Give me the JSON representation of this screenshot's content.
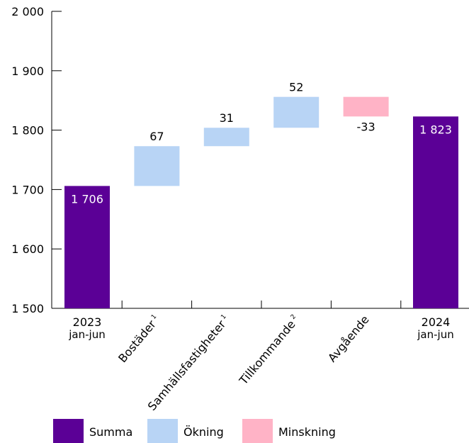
{
  "chart_data": {
    "type": "bar",
    "subtype": "waterfall",
    "ylim": [
      1500,
      2000
    ],
    "y_ticks": [
      {
        "value": 1500,
        "label": "1 500"
      },
      {
        "value": 1600,
        "label": "1 600"
      },
      {
        "value": 1700,
        "label": "1 700"
      },
      {
        "value": 1800,
        "label": "1 800"
      },
      {
        "value": 1900,
        "label": "1 900"
      },
      {
        "value": 2000,
        "label": "2 000"
      }
    ],
    "categories": [
      {
        "label": "2023",
        "sublabel": "jan-jun",
        "footnote": "",
        "rotated": false
      },
      {
        "label": "Bostäder",
        "sublabel": "",
        "footnote": "1",
        "rotated": true
      },
      {
        "label": "Samhällsfastigheter",
        "sublabel": "",
        "footnote": "1",
        "rotated": true
      },
      {
        "label": "Tillkommande",
        "sublabel": "",
        "footnote": "2",
        "rotated": true
      },
      {
        "label": "Avgående",
        "sublabel": "",
        "footnote": "",
        "rotated": true
      },
      {
        "label": "2024",
        "sublabel": "jan-jun",
        "footnote": "",
        "rotated": false
      }
    ],
    "bars": [
      {
        "kind": "total",
        "start": 1500,
        "end": 1706,
        "label": "1 706"
      },
      {
        "kind": "increase",
        "start": 1706,
        "end": 1773,
        "label": "67"
      },
      {
        "kind": "increase",
        "start": 1773,
        "end": 1804,
        "label": "31"
      },
      {
        "kind": "increase",
        "start": 1804,
        "end": 1856,
        "label": "52"
      },
      {
        "kind": "decrease",
        "start": 1856,
        "end": 1823,
        "label": "-33"
      },
      {
        "kind": "total",
        "start": 1500,
        "end": 1823,
        "label": "1 823"
      }
    ],
    "legend": [
      {
        "kind": "total",
        "label": "Summa"
      },
      {
        "kind": "increase",
        "label": "Ökning"
      },
      {
        "kind": "decrease",
        "label": "Minskning"
      }
    ],
    "colors": {
      "total": "#5b0096",
      "increase": "#b8d4f5",
      "decrease": "#ffb3c6",
      "total_label": "#ffffff",
      "other_label": "#000000"
    },
    "legend_position": "bottom",
    "grid": false
  }
}
